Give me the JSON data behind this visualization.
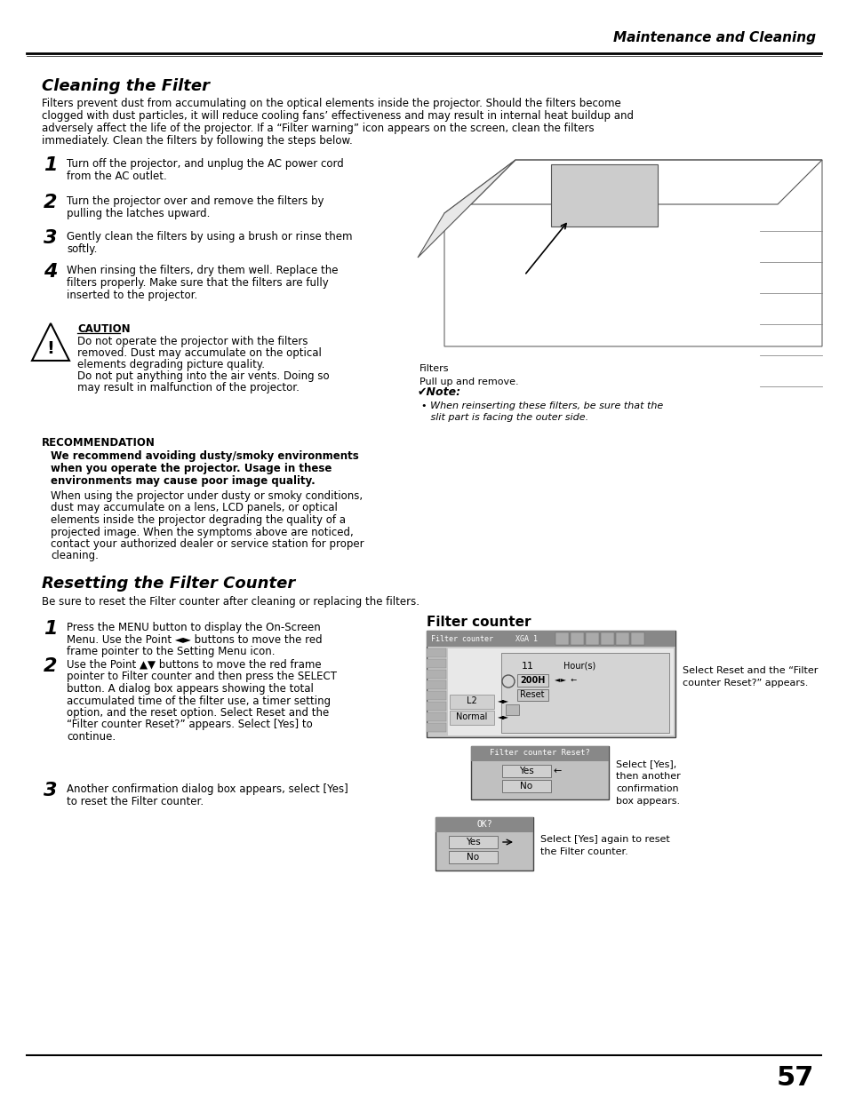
{
  "page_number": "57",
  "header_title": "Maintenance and Cleaning",
  "section1_title": "Cleaning the Filter",
  "section1_intro": "Filters prevent dust from accumulating on the optical elements inside the projector. Should the filters become\nclogged with dust particles, it will reduce cooling fans’ effectiveness and may result in internal heat buildup and\nadversely affect the life of the projector. If a “Filter warning” icon appears on the screen, clean the filters\nimmediately. Clean the filters by following the steps below.",
  "steps1": [
    {
      "num": "1",
      "text": "Turn off the projector, and unplug the AC power cord\nfrom the AC outlet."
    },
    {
      "num": "2",
      "text": "Turn the projector over and remove the filters by\npulling the latches upward."
    },
    {
      "num": "3",
      "text": "Gently clean the filters by using a brush or rinse them\nsoftly."
    },
    {
      "num": "4",
      "text": "When rinsing the filters, dry them well. Replace the\nfilters properly. Make sure that the filters are fully\ninserted to the projector."
    }
  ],
  "caution_title": "CAUTION",
  "caution_text": "Do not operate the projector with the filters\nremoved. Dust may accumulate on the optical\nelements degrading picture quality.\nDo not put anything into the air vents. Doing so\nmay result in malfunction of the projector.",
  "recommendation_title": "RECOMMENDATION",
  "recommendation_bold": "We recommend avoiding dusty/smoky environments\nwhen you operate the projector. Usage in these\nenvironments may cause poor image quality.",
  "recommendation_text": "When using the projector under dusty or smoky conditions,\ndust may accumulate on a lens, LCD panels, or optical\nelements inside the projector degrading the quality of a\nprojected image. When the symptoms above are noticed,\ncontact your authorized dealer or service station for proper\ncleaning.",
  "image_caption1": "Filters\nPull up and remove.",
  "note_title": "✔Note:",
  "note_text": "• When reinserting these filters, be sure that the\n   slit part is facing the outer side.",
  "section2_title": "Resetting the Filter Counter",
  "section2_intro": "Be sure to reset the Filter counter after cleaning or replacing the filters.",
  "steps2": [
    {
      "num": "1",
      "text": "Press the MENU button to display the On-Screen\nMenu. Use the Point ◄► buttons to move the red\nframe pointer to the Setting Menu icon."
    },
    {
      "num": "2",
      "text": "Use the Point ▲▼ buttons to move the red frame\npointer to Filter counter and then press the SELECT\nbutton. A dialog box appears showing the total\naccumulated time of the filter use, a timer setting\noption, and the reset option. Select Reset and the\n“Filter counter Reset?” appears. Select [Yes] to\ncontinue."
    },
    {
      "num": "3",
      "text": "Another confirmation dialog box appears, select [Yes]\nto reset the Filter counter."
    }
  ],
  "filter_counter_title": "Filter counter",
  "screenshot_labels": [
    "Select Reset and the “Filter\ncounter Reset?” appears.",
    "Select [Yes],\nthen another\nconfirmation\nbox appears.",
    "Select [Yes] again to reset\nthe Filter counter."
  ],
  "bg_color": "#ffffff",
  "text_color": "#000000"
}
